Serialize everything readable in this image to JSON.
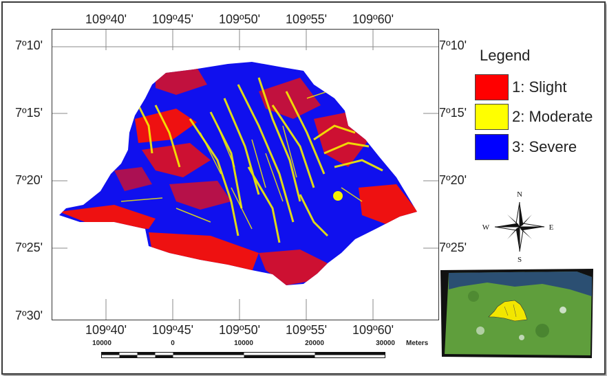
{
  "map": {
    "coords_top": [
      "109º40'",
      "109º45'",
      "109º50'",
      "109º55'",
      "109º60'"
    ],
    "coords_bottom": [
      "109º40'",
      "109º45'",
      "109º50'",
      "109º55'",
      "109º60'"
    ],
    "coords_left": [
      "7º10'",
      "7º15'",
      "7º20'",
      "7º25'",
      "7º30'"
    ],
    "coords_right": [
      "7º10'",
      "7º15'",
      "7º20'",
      "7º25'"
    ]
  },
  "legend": {
    "title": "Legend",
    "items": [
      {
        "label": "1: Slight",
        "color": "#ff0000"
      },
      {
        "label": "2: Moderate",
        "color": "#ffff00"
      },
      {
        "label": "3: Severe",
        "color": "#0000ff"
      }
    ]
  },
  "north_arrow": {
    "n": "N",
    "s": "S",
    "e": "E",
    "w": "W",
    "icon": "compass-rose-icon"
  },
  "scale_bar": {
    "labels": [
      "10000",
      "0",
      "10000",
      "20000",
      "30000"
    ],
    "unit": "Meters"
  },
  "inset": {
    "icon": "satellite-inset-map",
    "region_color": "#f2e600",
    "land_color": "#5f9e3c"
  }
}
